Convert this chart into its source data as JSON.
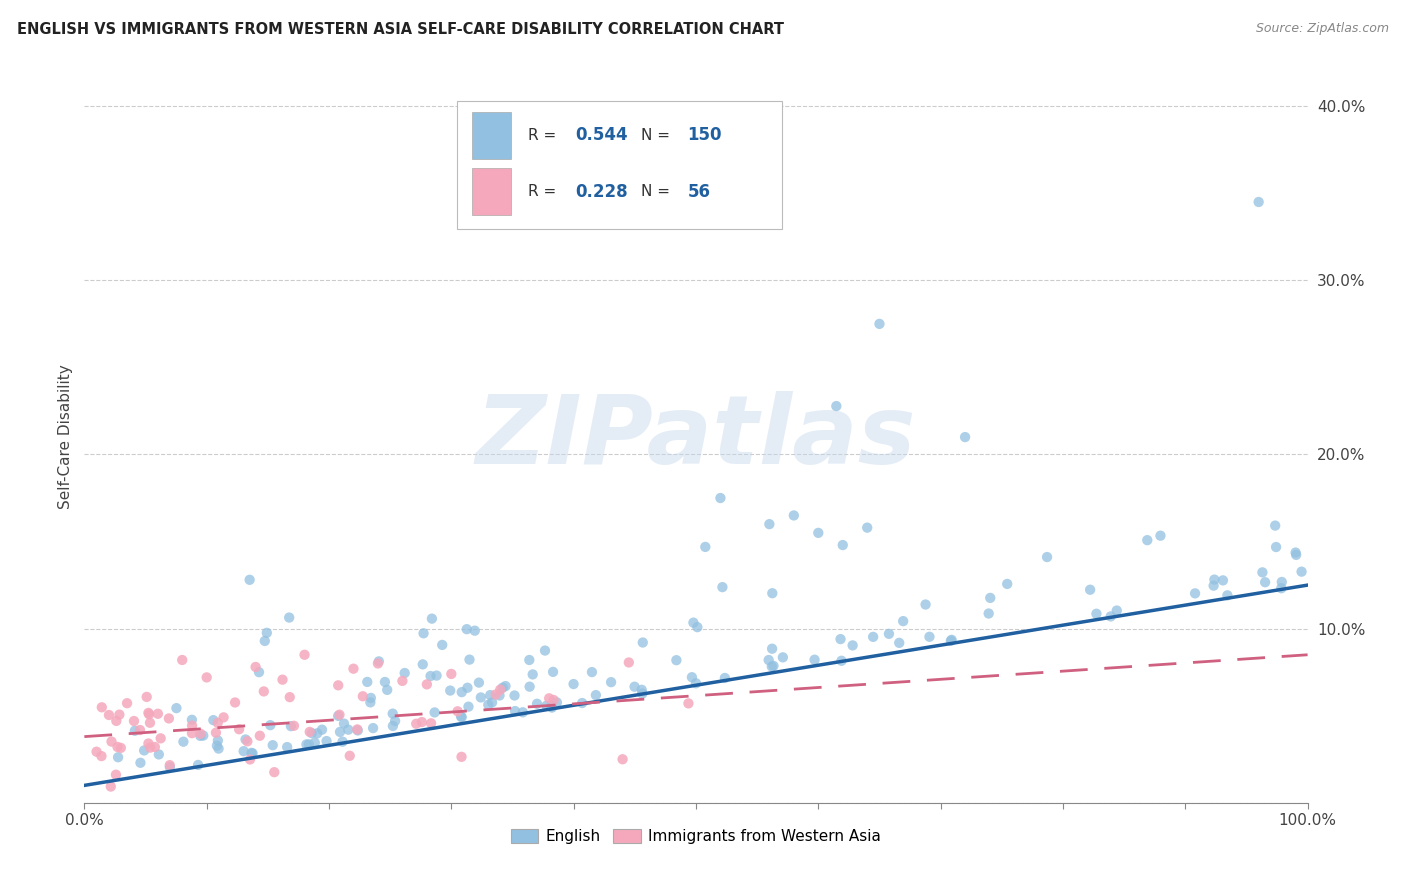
{
  "title": "ENGLISH VS IMMIGRANTS FROM WESTERN ASIA SELF-CARE DISABILITY CORRELATION CHART",
  "source": "Source: ZipAtlas.com",
  "ylabel": "Self-Care Disability",
  "xlim": [
    0.0,
    1.0
  ],
  "ylim": [
    0.0,
    0.42
  ],
  "legend_r_english": "0.544",
  "legend_n_english": "150",
  "legend_r_immigrants": "0.228",
  "legend_n_immigrants": "56",
  "english_color": "#92c0e0",
  "immigrants_color": "#f5a8bc",
  "english_line_color": "#2060a0",
  "immigrants_line_color": "#d06080",
  "watermark_text": "ZIPatlas",
  "eng_seed": 42,
  "imm_seed": 99,
  "eng_n": 150,
  "imm_n": 56,
  "eng_line_x0": 0.0,
  "eng_line_y0": 0.01,
  "eng_line_x1": 1.0,
  "eng_line_y1": 0.125,
  "imm_line_x0": 0.0,
  "imm_line_y0": 0.038,
  "imm_line_x1": 1.0,
  "imm_line_y1": 0.085
}
